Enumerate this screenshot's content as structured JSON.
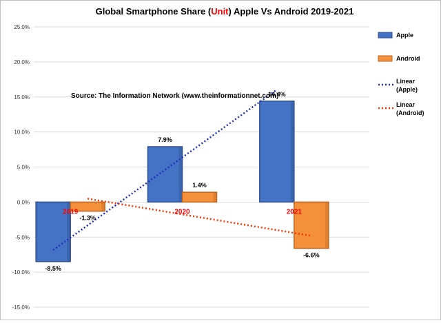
{
  "chart_data": {
    "type": "bar",
    "title_parts": [
      "Global Smartphone Share (",
      "Unit",
      ") Apple Vs Android 2019-2021"
    ],
    "title_accent_color": "#ff0000",
    "annotation": "Source: The Information Network (www.theinformationnet.com)",
    "categories": [
      "2019",
      "2020",
      "2021"
    ],
    "series": [
      {
        "name": "Apple",
        "values": [
          -8.5,
          7.9,
          14.4
        ],
        "labels": [
          "-8.5%",
          "7.9%",
          "14.4%"
        ],
        "color": "#4472c4",
        "border": "#2f4e8c"
      },
      {
        "name": "Android",
        "values": [
          -1.3,
          1.4,
          -6.6
        ],
        "labels": [
          "-1.3%",
          "1.4%",
          "-6.6%"
        ],
        "color": "#f5903a",
        "border": "#b96420"
      }
    ],
    "trendlines": [
      {
        "name": "Linear\n(Apple)",
        "series": "Apple",
        "color": "#1f2fbf",
        "style": "dotted"
      },
      {
        "name": "Linear\n(Android)",
        "series": "Android",
        "color": "#ff3300",
        "style": "dotted"
      }
    ],
    "ylim": [
      -15,
      25
    ],
    "yticks": [
      -15,
      -10,
      -5,
      0,
      5,
      10,
      15,
      20,
      25
    ],
    "ytick_labels": [
      "-15.0%",
      "-10.0%",
      "-5.0%",
      "0.0%",
      "5.0%",
      "10.0%",
      "15.0%",
      "20.0%",
      "25.0%"
    ],
    "grid": "horizontal",
    "legend_position": "right",
    "category_label_color": "#ff0000",
    "xlabel": "",
    "ylabel": ""
  }
}
